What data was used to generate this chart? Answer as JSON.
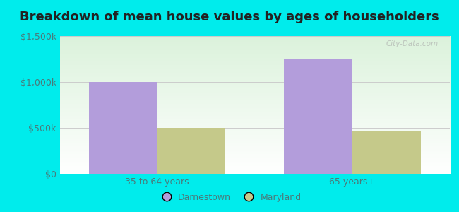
{
  "title": "Breakdown of mean house values by ages of householders",
  "categories": [
    "35 to 64 years",
    "65 years+"
  ],
  "darnestown_values": [
    1000000,
    1250000
  ],
  "maryland_values": [
    500000,
    460000
  ],
  "darnestown_color": "#b39ddb",
  "maryland_color": "#c5c98a",
  "background_outer": "#00ecec",
  "ylim": [
    0,
    1500000
  ],
  "yticks": [
    0,
    500000,
    1000000,
    1500000
  ],
  "ytick_labels": [
    "$0",
    "$500k",
    "$1,000k",
    "$1,500k"
  ],
  "legend_labels": [
    "Darnestown",
    "Maryland"
  ],
  "watermark": "City-Data.com",
  "title_fontsize": 13,
  "tick_fontsize": 9,
  "legend_fontsize": 9,
  "bar_width": 0.35
}
